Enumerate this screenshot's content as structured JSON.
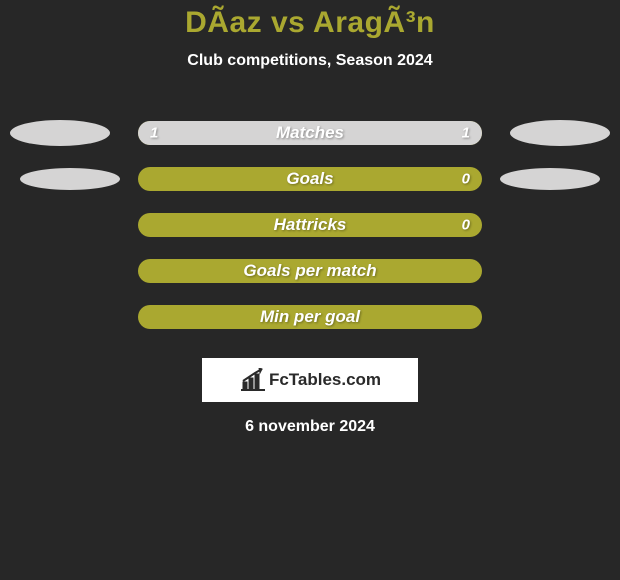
{
  "background_color": "#272727",
  "title": {
    "text": "DÃ­az vs AragÃ³n",
    "color": "#aaa830",
    "fontsize": 30
  },
  "subtitle": {
    "text": "Club competitions, Season 2024",
    "color": "#ffffff",
    "fontsize": 16
  },
  "chart": {
    "track_color": "#aaa830",
    "fill_left_color": "#d5d4d4",
    "fill_right_color": "#d5d4d4",
    "label_color": "#ffffff",
    "label_fontsize": 17,
    "value_color": "#ffffff",
    "value_fontsize": 15,
    "ellipse_left_color": "#d5d4d4",
    "ellipse_right_color": "#d5d4d4",
    "ellipse_outer_width": 100,
    "ellipse_outer_height": 26,
    "ellipse_inner_width": 100,
    "ellipse_inner_height": 22,
    "rows": [
      {
        "label": "Matches",
        "left_value": "1",
        "right_value": "1",
        "left_pct": 50,
        "right_pct": 50,
        "ellipse_left": "outer",
        "ellipse_right": "outer"
      },
      {
        "label": "Goals",
        "left_value": "",
        "right_value": "0",
        "left_pct": 0,
        "right_pct": 0,
        "ellipse_left": "inner",
        "ellipse_right": "inner"
      },
      {
        "label": "Hattricks",
        "left_value": "",
        "right_value": "0",
        "left_pct": 0,
        "right_pct": 0,
        "ellipse_left": "none",
        "ellipse_right": "none"
      },
      {
        "label": "Goals per match",
        "left_value": "",
        "right_value": "",
        "left_pct": 0,
        "right_pct": 0,
        "ellipse_left": "none",
        "ellipse_right": "none"
      },
      {
        "label": "Min per goal",
        "left_value": "",
        "right_value": "",
        "left_pct": 0,
        "right_pct": 0,
        "ellipse_left": "none",
        "ellipse_right": "none"
      }
    ]
  },
  "brand": {
    "box_bg": "#ffffff",
    "text": "FcTables.com",
    "text_color": "#2a2a2a",
    "icon_color": "#2a2a2a"
  },
  "date": {
    "text": "6 november 2024",
    "color": "#ffffff",
    "fontsize": 16
  }
}
